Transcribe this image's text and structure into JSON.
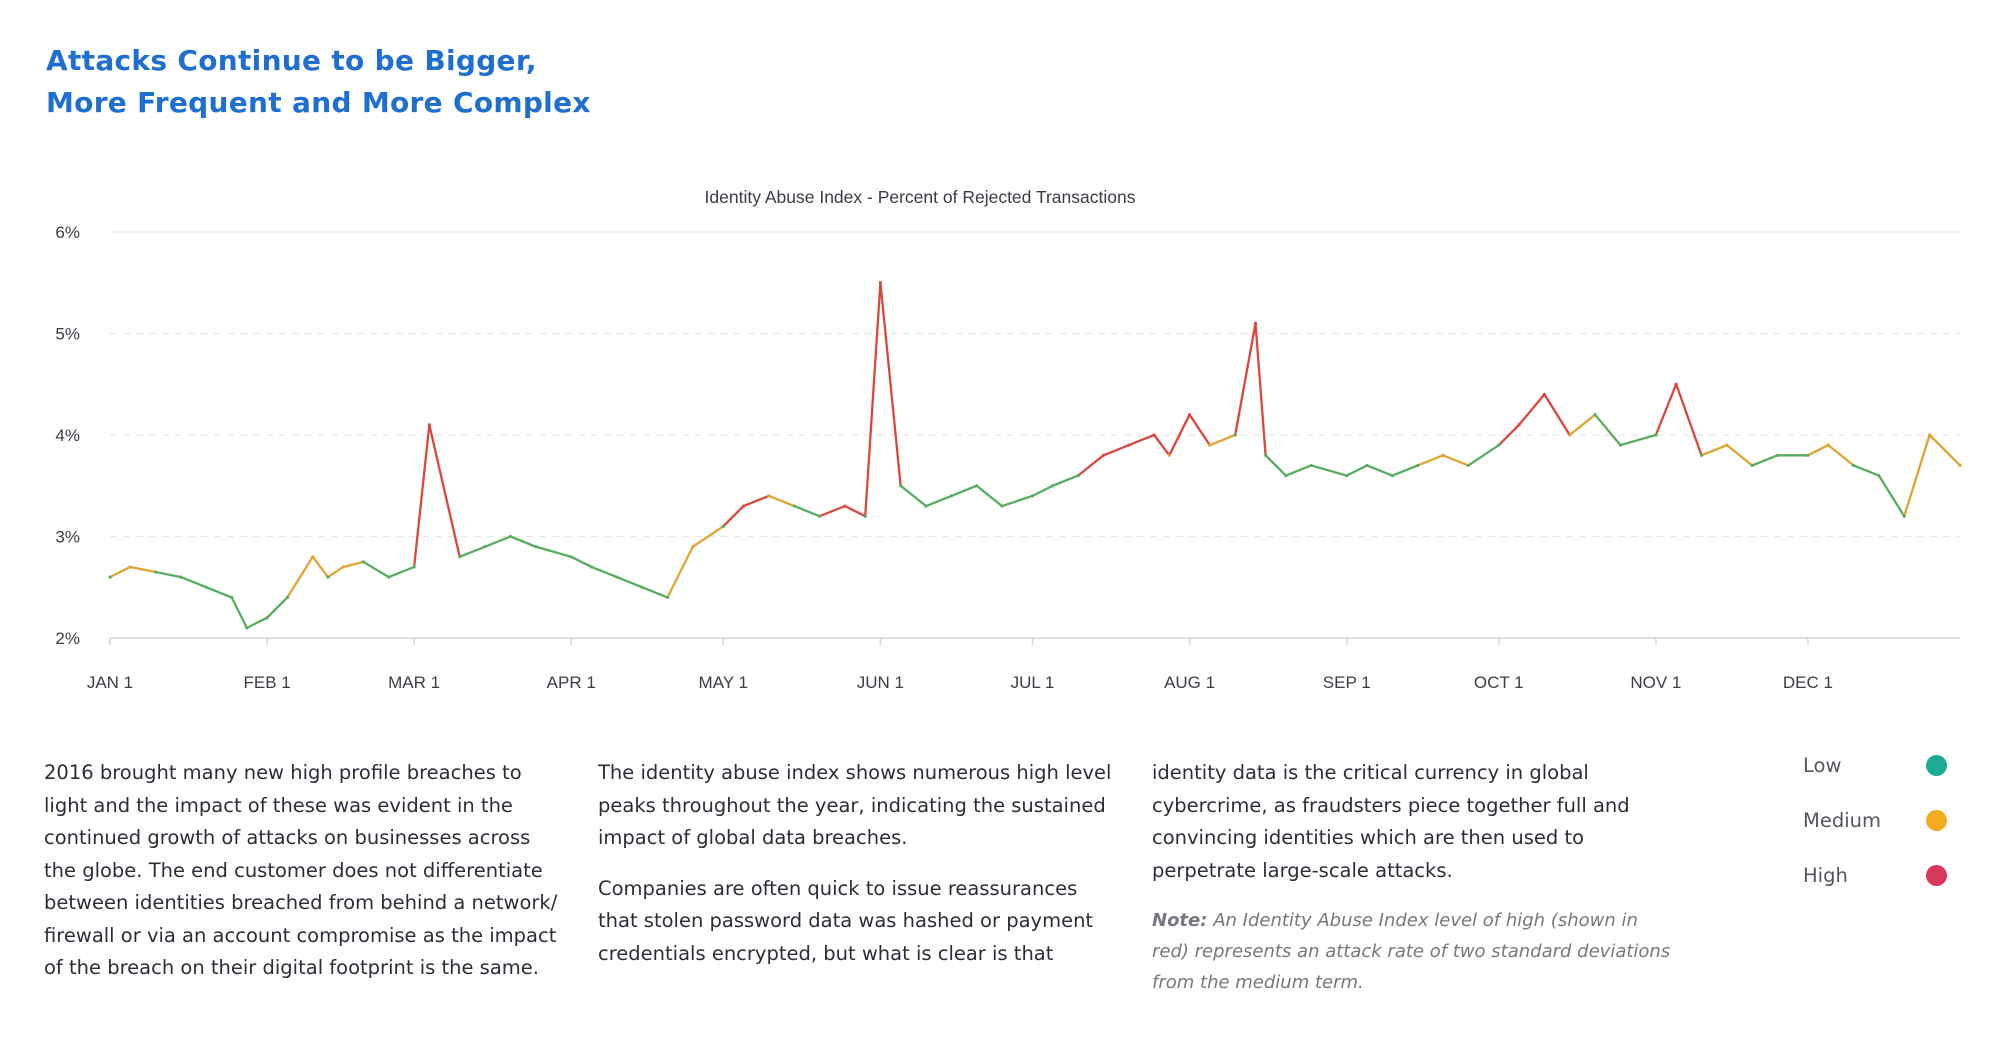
{
  "headline": {
    "line1": "Attacks Continue to be Bigger,",
    "line2": "More Frequent and More Complex"
  },
  "chart_data": {
    "type": "line",
    "title": "Identity Abuse Index - Percent of Rejected Transactions",
    "xlabel": "",
    "ylabel": "",
    "ylim": [
      2,
      6
    ],
    "y_ticks": [
      "2%",
      "3%",
      "4%",
      "5%",
      "6%"
    ],
    "x_tick_labels": [
      "JAN 1",
      "FEB 1",
      "MAR 1",
      "APR 1",
      "MAY 1",
      "JUN 1",
      "JUL 1",
      "AUG 1",
      "SEP 1",
      "OCT 1",
      "NOV 1",
      "DEC 1"
    ],
    "x_tick_dates": [
      "2016-01-01",
      "2016-02-01",
      "2016-03-01",
      "2016-04-01",
      "2016-05-01",
      "2016-06-01",
      "2016-07-01",
      "2016-08-01",
      "2016-09-01",
      "2016-10-01",
      "2016-11-01",
      "2016-12-01"
    ],
    "x_start": "2016-01-01",
    "x_end": "2016-12-31",
    "grid": "horizontal dashed",
    "color_scale": {
      "low": "#5aac5e",
      "medium": "#e0a531",
      "high": "#d9473f"
    },
    "series": [
      {
        "name": "",
        "x": [
          "2016-01-01",
          "2016-01-05",
          "2016-01-10",
          "2016-01-15",
          "2016-01-20",
          "2016-01-25",
          "2016-01-28",
          "2016-02-01",
          "2016-02-05",
          "2016-02-10",
          "2016-02-13",
          "2016-02-16",
          "2016-02-20",
          "2016-02-25",
          "2016-03-01",
          "2016-03-04",
          "2016-03-10",
          "2016-03-15",
          "2016-03-20",
          "2016-03-25",
          "2016-04-01",
          "2016-04-05",
          "2016-04-10",
          "2016-04-15",
          "2016-04-20",
          "2016-04-25",
          "2016-05-01",
          "2016-05-05",
          "2016-05-10",
          "2016-05-15",
          "2016-05-20",
          "2016-05-25",
          "2016-05-29",
          "2016-06-01",
          "2016-06-05",
          "2016-06-10",
          "2016-06-15",
          "2016-06-20",
          "2016-06-25",
          "2016-07-01",
          "2016-07-05",
          "2016-07-10",
          "2016-07-15",
          "2016-07-20",
          "2016-07-25",
          "2016-07-28",
          "2016-08-01",
          "2016-08-05",
          "2016-08-10",
          "2016-08-14",
          "2016-08-16",
          "2016-08-20",
          "2016-08-25",
          "2016-09-01",
          "2016-09-05",
          "2016-09-10",
          "2016-09-15",
          "2016-09-20",
          "2016-09-25",
          "2016-10-01",
          "2016-10-05",
          "2016-10-10",
          "2016-10-15",
          "2016-10-20",
          "2016-10-25",
          "2016-11-01",
          "2016-11-05",
          "2016-11-10",
          "2016-11-15",
          "2016-11-20",
          "2016-11-25",
          "2016-12-01",
          "2016-12-05",
          "2016-12-10",
          "2016-12-15",
          "2016-12-20",
          "2016-12-25",
          "2016-12-31"
        ],
        "values": [
          2.6,
          2.7,
          2.65,
          2.6,
          2.5,
          2.4,
          2.1,
          2.2,
          2.4,
          2.8,
          2.6,
          2.7,
          2.75,
          2.6,
          2.7,
          4.1,
          2.8,
          2.9,
          3.0,
          2.9,
          2.8,
          2.7,
          2.6,
          2.5,
          2.4,
          2.9,
          3.1,
          3.3,
          3.4,
          3.3,
          3.2,
          3.3,
          3.2,
          5.5,
          3.5,
          3.3,
          3.4,
          3.5,
          3.3,
          3.4,
          3.5,
          3.6,
          3.8,
          3.9,
          4.0,
          3.8,
          4.2,
          3.9,
          4.0,
          5.1,
          3.8,
          3.6,
          3.7,
          3.6,
          3.7,
          3.6,
          3.7,
          3.8,
          3.7,
          3.9,
          4.1,
          4.4,
          4.0,
          4.2,
          3.9,
          4.0,
          4.5,
          3.8,
          3.9,
          3.7,
          3.8,
          3.8,
          3.9,
          3.7,
          3.6,
          3.2,
          4.0,
          3.7
        ],
        "levels": [
          "low",
          "medium",
          "low",
          "low",
          "low",
          "low",
          "low",
          "low",
          "low",
          "medium",
          "low",
          "medium",
          "low",
          "low",
          "low",
          "high",
          "low",
          "low",
          "low",
          "low",
          "low",
          "low",
          "low",
          "low",
          "low",
          "medium",
          "low",
          "high",
          "medium",
          "low",
          "low",
          "high",
          "low",
          "high",
          "low",
          "low",
          "low",
          "low",
          "low",
          "low",
          "low",
          "low",
          "high",
          "high",
          "high",
          "medium",
          "high",
          "medium",
          "low",
          "high",
          "low",
          "low",
          "low",
          "low",
          "low",
          "low",
          "low",
          "medium",
          "low",
          "low",
          "high",
          "high",
          "medium",
          "low",
          "low",
          "low",
          "high",
          "low",
          "medium",
          "low",
          "low",
          "low",
          "medium",
          "low",
          "low",
          "low",
          "medium",
          "medium"
        ]
      }
    ]
  },
  "columns": {
    "col1": {
      "p1": "2016 brought many new high profile breaches to light and the impact of these was evident in the continued growth of attacks on businesses across the globe. The end customer does not differentiate between identities breached from behind a network/ firewall or via an account compromise as the impact of the breach on their digital footprint is the same."
    },
    "col2": {
      "p1": "The identity abuse index shows numerous high level peaks throughout the year, indicating the sustained impact of global data breaches.",
      "p2": "Companies are often quick to issue reassurances that stolen password data was hashed or payment credentials encrypted, but what is clear is that"
    },
    "col3": {
      "p1": "identity data is the critical currency in global cybercrime, as fraudsters piece  together full and convincing identities which are then used to perpetrate large-scale attacks.",
      "note_label": "Note:",
      "note_text": "An Identity Abuse Index level of high (shown in red) represents an attack rate of two standard deviations from the medium term."
    }
  },
  "legend": {
    "items": [
      {
        "label": "Low",
        "color": "#1aab92"
      },
      {
        "label": "Medium",
        "color": "#f4ab1f"
      },
      {
        "label": "High",
        "color": "#d8365c"
      }
    ]
  }
}
